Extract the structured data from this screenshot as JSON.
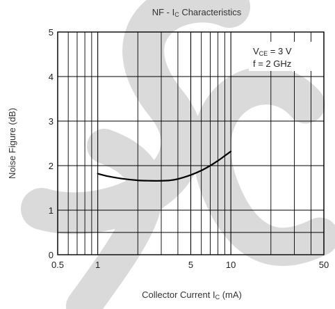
{
  "chart_data": {
    "type": "line",
    "title": {
      "main": "NF - I",
      "sub": "C",
      "rest": " Characteristics"
    },
    "xlabel": {
      "main": "Collector Current I",
      "sub": "C",
      "rest": " (mA)"
    },
    "ylabel": "Noise Figure (dB)",
    "x_scale": "log",
    "xlim": [
      0.5,
      50
    ],
    "ylim": [
      0,
      5
    ],
    "x_ticks": [
      0.5,
      1,
      5,
      10,
      50
    ],
    "x_tick_labels": [
      "0.5",
      "1",
      "5",
      "10",
      "50"
    ],
    "y_ticks": [
      0,
      1,
      2,
      3,
      4,
      5
    ],
    "y_tick_labels": [
      "0",
      "1",
      "2",
      "3",
      "4",
      "5"
    ],
    "minor_x_grid": [
      0.6,
      0.7,
      0.8,
      0.9,
      2,
      3,
      4,
      6,
      7,
      8,
      9,
      20,
      30,
      40
    ],
    "minor_y_grid": [
      0.5
    ],
    "grid": true,
    "annotation": {
      "line1": {
        "main": "V",
        "sub": "CE",
        "rest": " = 3 V"
      },
      "line2": "f = 2 GHz",
      "placement": "top-right"
    },
    "series": [
      {
        "x": [
          1,
          1.2,
          1.5,
          2,
          2.5,
          3,
          3.5,
          4,
          5,
          6,
          7,
          8,
          9,
          10
        ],
        "y": [
          1.82,
          1.76,
          1.71,
          1.67,
          1.66,
          1.66,
          1.67,
          1.7,
          1.79,
          1.89,
          2.0,
          2.11,
          2.22,
          2.32
        ]
      }
    ],
    "colors": {
      "line": "#000000",
      "grid": "#000000",
      "watermark": "#d9d9d9"
    }
  }
}
